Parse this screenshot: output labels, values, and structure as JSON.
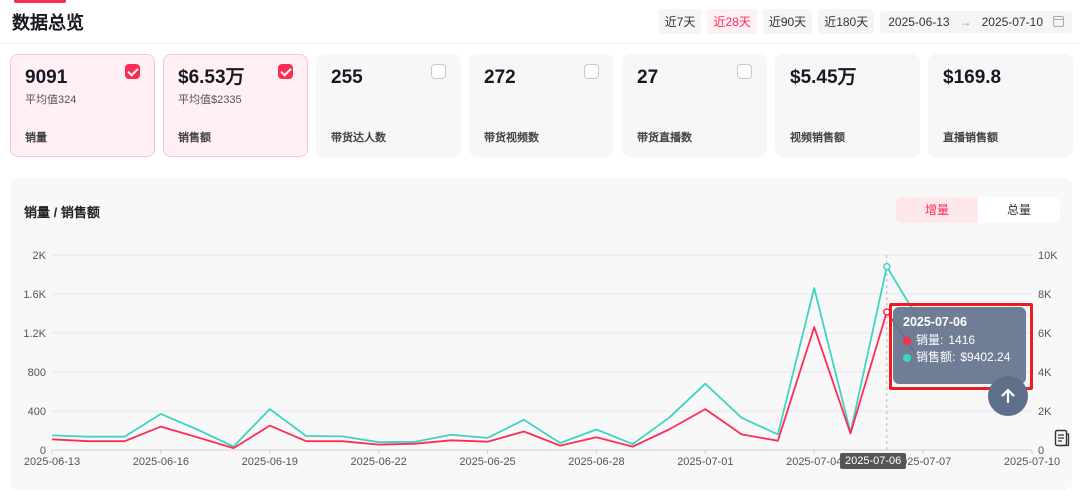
{
  "header": {
    "title": "数据总览",
    "ranges": [
      {
        "label": "近7天",
        "active": false
      },
      {
        "label": "近28天",
        "active": true
      },
      {
        "label": "近90天",
        "active": false
      },
      {
        "label": "近180天",
        "active": false
      }
    ],
    "date_start": "2025-06-13",
    "date_sep": "→",
    "date_end": "2025-07-10"
  },
  "cards": [
    {
      "value": "9091",
      "sub": "平均值324",
      "label": "销量",
      "checked": true
    },
    {
      "value": "$6.53万",
      "sub": "平均值$2335",
      "label": "销售额",
      "checked": true
    },
    {
      "value": "255",
      "sub": "",
      "label": "带货达人数",
      "checked": false
    },
    {
      "value": "272",
      "sub": "",
      "label": "带货视频数",
      "checked": false
    },
    {
      "value": "27",
      "sub": "",
      "label": "带货直播数",
      "checked": false
    },
    {
      "value": "$5.45万",
      "sub": "",
      "label": "视频销售额",
      "checked": null
    },
    {
      "value": "$169.8",
      "sub": "",
      "label": "直播销售额",
      "checked": null
    }
  ],
  "chart_panel": {
    "title": "销量 / 销售额",
    "toggle": [
      {
        "label": "增量",
        "active": true
      },
      {
        "label": "总量",
        "active": false
      }
    ]
  },
  "tooltip": {
    "date": "2025-07-06",
    "rows": [
      {
        "label": "销量: ",
        "value": "1416",
        "color": "#fe2c55"
      },
      {
        "label": "销售额: ",
        "value": "$9402.24",
        "color": "#3fd3c3"
      }
    ]
  },
  "hover_x_label": "2025-07-06",
  "colors": {
    "accent": "#fe2c55",
    "sales_line": "#fe2c55",
    "revenue_line": "#3fd3c3"
  },
  "chart_data": {
    "type": "line",
    "x": [
      "2025-06-13",
      "2025-06-14",
      "2025-06-15",
      "2025-06-16",
      "2025-06-17",
      "2025-06-18",
      "2025-06-19",
      "2025-06-20",
      "2025-06-21",
      "2025-06-22",
      "2025-06-23",
      "2025-06-24",
      "2025-06-25",
      "2025-06-26",
      "2025-06-27",
      "2025-06-28",
      "2025-06-29",
      "2025-06-30",
      "2025-07-01",
      "2025-07-02",
      "2025-07-03",
      "2025-07-04",
      "2025-07-05",
      "2025-07-06",
      "2025-07-07"
    ],
    "x_tick_labels": [
      "2025-06-13",
      "2025-06-16",
      "2025-06-19",
      "2025-06-22",
      "2025-06-25",
      "2025-06-28",
      "2025-07-01",
      "2025-07-04",
      "2025-07-07",
      "2025-07-10"
    ],
    "xlim": [
      "2025-06-13",
      "2025-07-10"
    ],
    "y_left": {
      "ticks": [
        "0",
        "400",
        "800",
        "1.2K",
        "1.6K",
        "2K"
      ],
      "ylim": [
        0,
        2000
      ]
    },
    "y_right": {
      "ticks": [
        "0",
        "2K",
        "4K",
        "6K",
        "8K",
        "10K"
      ],
      "ylim": [
        0,
        10000
      ]
    },
    "series": [
      {
        "name": "销量",
        "axis": "left",
        "values": [
          110,
          90,
          90,
          240,
          130,
          20,
          250,
          90,
          90,
          55,
          65,
          100,
          85,
          190,
          45,
          130,
          35,
          210,
          420,
          160,
          95,
          1260,
          170,
          1416,
          880
        ]
      },
      {
        "name": "销售额",
        "axis": "right",
        "values": [
          750,
          680,
          680,
          1850,
          1050,
          180,
          2100,
          720,
          700,
          400,
          420,
          780,
          620,
          1550,
          360,
          1050,
          300,
          1650,
          3400,
          1650,
          800,
          8300,
          900,
          9402,
          6300
        ]
      }
    ],
    "grid": true
  }
}
